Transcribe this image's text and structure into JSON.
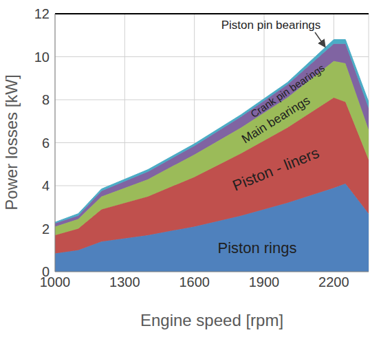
{
  "chart_data": {
    "type": "area",
    "stacked": true,
    "x_label": "Engine speed [rpm]",
    "y_label": "Power losses [kW]",
    "x": [
      1000,
      1100,
      1200,
      1400,
      1600,
      1800,
      2000,
      2200,
      2250,
      2350
    ],
    "series": [
      {
        "name": "Piston rings",
        "color": "#4f81bd",
        "values": [
          0.85,
          1.0,
          1.4,
          1.7,
          2.1,
          2.6,
          3.2,
          3.9,
          4.1,
          2.7
        ]
      },
      {
        "name": "Piston - liners",
        "color": "#c0504d",
        "values": [
          0.85,
          1.0,
          1.5,
          1.8,
          2.3,
          2.9,
          3.5,
          4.2,
          3.8,
          2.5
        ]
      },
      {
        "name": "Main bearings",
        "color": "#9bbb59",
        "values": [
          0.4,
          0.45,
          0.6,
          0.8,
          1.05,
          1.2,
          1.4,
          1.7,
          1.8,
          1.4
        ]
      },
      {
        "name": "Crank pin bearings",
        "color": "#8064a2",
        "values": [
          0.15,
          0.15,
          0.25,
          0.35,
          0.4,
          0.5,
          0.6,
          0.8,
          0.9,
          1.0
        ]
      },
      {
        "name": "Piston pin bearings",
        "color": "#4bacc6",
        "values": [
          0.05,
          0.1,
          0.1,
          0.1,
          0.1,
          0.1,
          0.1,
          0.2,
          0.2,
          0.3
        ]
      }
    ],
    "xlim": [
      1000,
      2350
    ],
    "xticks": [
      1000,
      1300,
      1600,
      1900,
      2200
    ],
    "ylim": [
      0,
      12
    ],
    "yticks": [
      0,
      2,
      4,
      6,
      8,
      10,
      12
    ],
    "grid": true
  }
}
